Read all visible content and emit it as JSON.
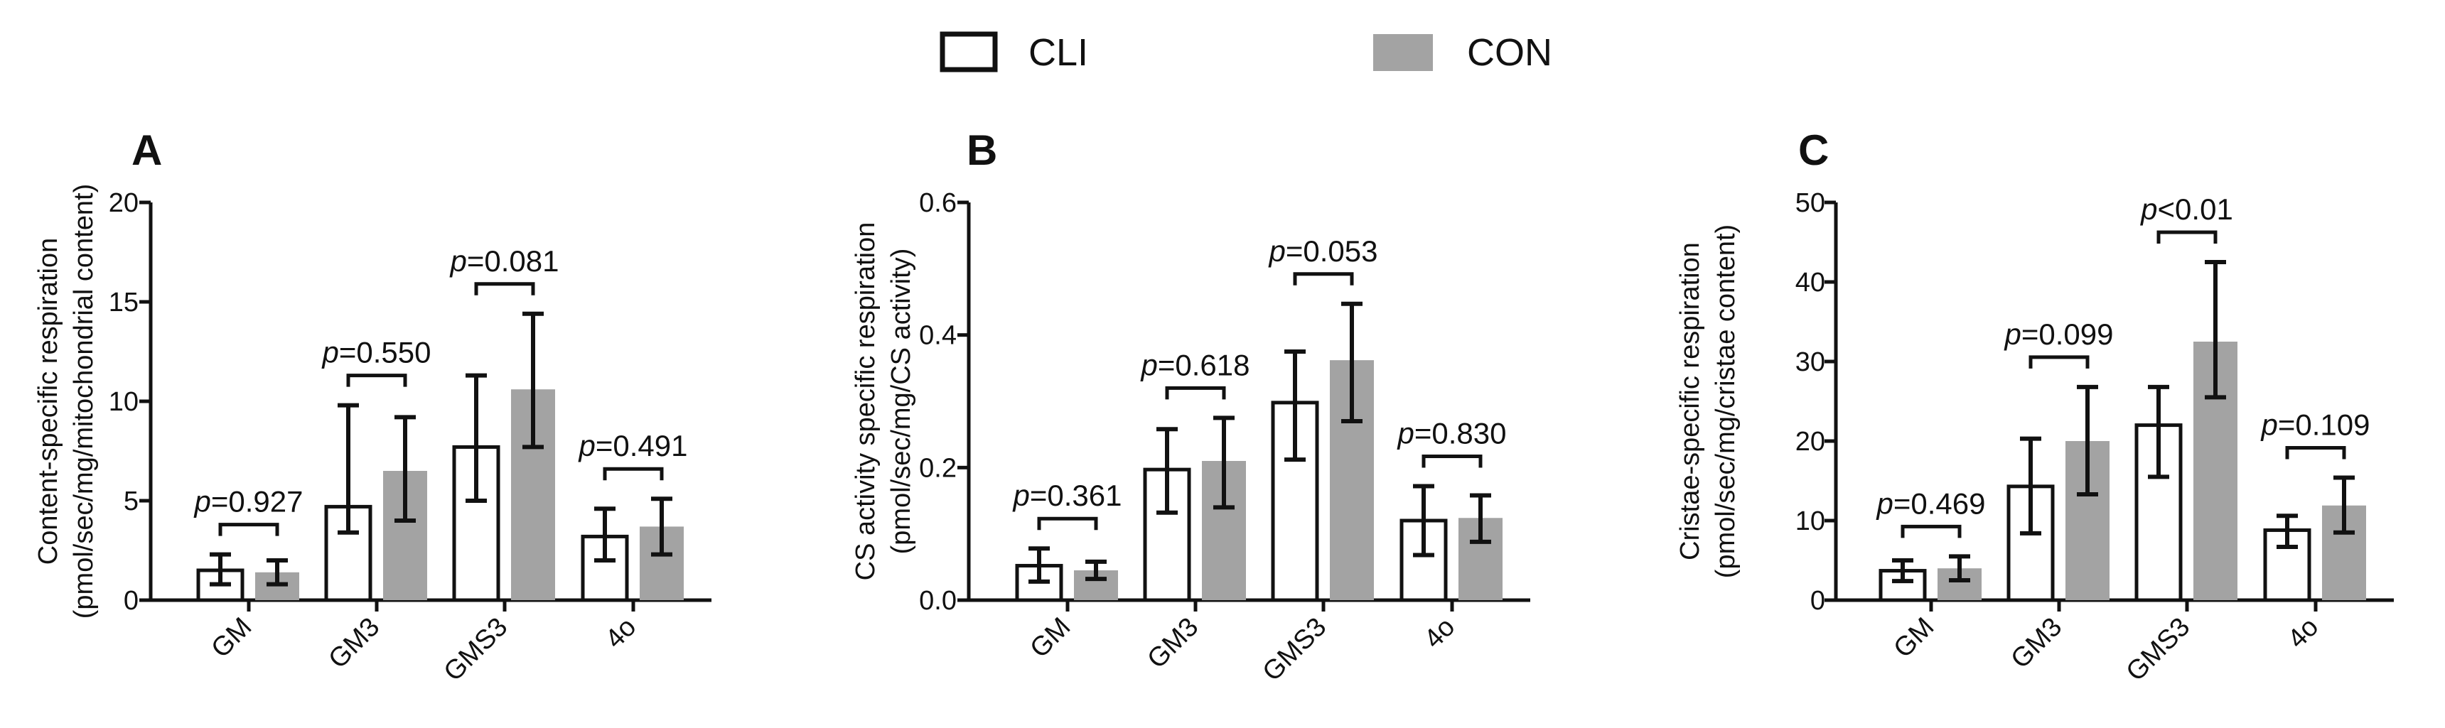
{
  "legend": {
    "entries": [
      {
        "name": "CLI",
        "fill": "#ffffff",
        "stroke": "#111111"
      },
      {
        "name": "CON",
        "fill": "#a3a3a3",
        "stroke": "#a3a3a3"
      }
    ]
  },
  "colors": {
    "cli_fill": "#ffffff",
    "con_fill": "#a3a3a3",
    "ink": "#111111"
  },
  "chart_data": [
    {
      "type": "bar",
      "panel_label": "A",
      "title": "",
      "xlabel": "",
      "ylabel_line1": "Content-specific respiration",
      "ylabel_line2": "(pmol/sec/mg/mitochondrial content)",
      "categories": [
        "GM",
        "GM3",
        "GMS3",
        "4o"
      ],
      "ylim": [
        0,
        20
      ],
      "yticks": [
        0,
        5,
        10,
        15,
        20
      ],
      "ytick_labels": [
        "0",
        "5",
        "10",
        "15",
        "20"
      ],
      "series": [
        {
          "name": "CLI",
          "values": [
            1.5,
            4.7,
            7.7,
            3.2
          ],
          "err_low": [
            0.8,
            3.4,
            5.0,
            2.0
          ],
          "err_high": [
            2.3,
            9.8,
            11.3,
            4.6
          ]
        },
        {
          "name": "CON",
          "values": [
            1.4,
            6.5,
            10.6,
            3.7
          ],
          "err_low": [
            0.8,
            4.0,
            7.7,
            2.3
          ],
          "err_high": [
            2.0,
            9.2,
            14.4,
            5.1
          ]
        }
      ],
      "p_values": [
        {
          "prefix": "p",
          "rest": "=0.927"
        },
        {
          "prefix": "p",
          "rest": "=0.550"
        },
        {
          "prefix": "p",
          "rest": "=0.081"
        },
        {
          "prefix": "p",
          "rest": "=0.491"
        }
      ]
    },
    {
      "type": "bar",
      "panel_label": "B",
      "title": "",
      "xlabel": "",
      "ylabel_line1": "CS activity specific respiration",
      "ylabel_line2": "(pmol/sec/mg/CS activity)",
      "categories": [
        "GM",
        "GM3",
        "GMS3",
        "4o"
      ],
      "ylim": [
        0,
        0.6
      ],
      "yticks": [
        0,
        0.2,
        0.4,
        0.6
      ],
      "ytick_labels": [
        "0.0",
        "0.2",
        "0.4",
        "0.6"
      ],
      "series": [
        {
          "name": "CLI",
          "values": [
            0.052,
            0.197,
            0.298,
            0.12
          ],
          "err_low": [
            0.028,
            0.132,
            0.212,
            0.068
          ],
          "err_high": [
            0.078,
            0.258,
            0.375,
            0.172
          ]
        },
        {
          "name": "CON",
          "values": [
            0.045,
            0.21,
            0.362,
            0.124
          ],
          "err_low": [
            0.032,
            0.14,
            0.27,
            0.088
          ],
          "err_high": [
            0.058,
            0.275,
            0.447,
            0.158
          ]
        }
      ],
      "p_values": [
        {
          "prefix": "p",
          "rest": "=0.361"
        },
        {
          "prefix": "p",
          "rest": "=0.618"
        },
        {
          "prefix": "p",
          "rest": "=0.053"
        },
        {
          "prefix": "p",
          "rest": "=0.830"
        }
      ]
    },
    {
      "type": "bar",
      "panel_label": "C",
      "title": "",
      "xlabel": "",
      "ylabel_line1": "Cristae-specific respiration",
      "ylabel_line2": "(pmol/sec/mg/cristae content)",
      "categories": [
        "GM",
        "GM3",
        "GMS3",
        "4o"
      ],
      "ylim": [
        0,
        50
      ],
      "yticks": [
        0,
        10,
        20,
        30,
        40,
        50
      ],
      "ytick_labels": [
        "0",
        "10",
        "20",
        "30",
        "40",
        "50"
      ],
      "series": [
        {
          "name": "CLI",
          "values": [
            3.7,
            14.3,
            22.0,
            8.8
          ],
          "err_low": [
            2.4,
            8.4,
            15.5,
            6.7
          ],
          "err_high": [
            5.0,
            20.3,
            26.8,
            10.6
          ]
        },
        {
          "name": "CON",
          "values": [
            4.0,
            20.0,
            32.5,
            11.9
          ],
          "err_low": [
            2.5,
            13.3,
            25.5,
            8.5
          ],
          "err_high": [
            5.5,
            26.8,
            42.5,
            15.4
          ]
        }
      ],
      "p_values": [
        {
          "prefix": "p",
          "rest": "=0.469"
        },
        {
          "prefix": "p",
          "rest": "=0.099"
        },
        {
          "prefix": "p",
          "rest": "<0.01"
        },
        {
          "prefix": "p",
          "rest": "=0.109"
        }
      ]
    }
  ]
}
